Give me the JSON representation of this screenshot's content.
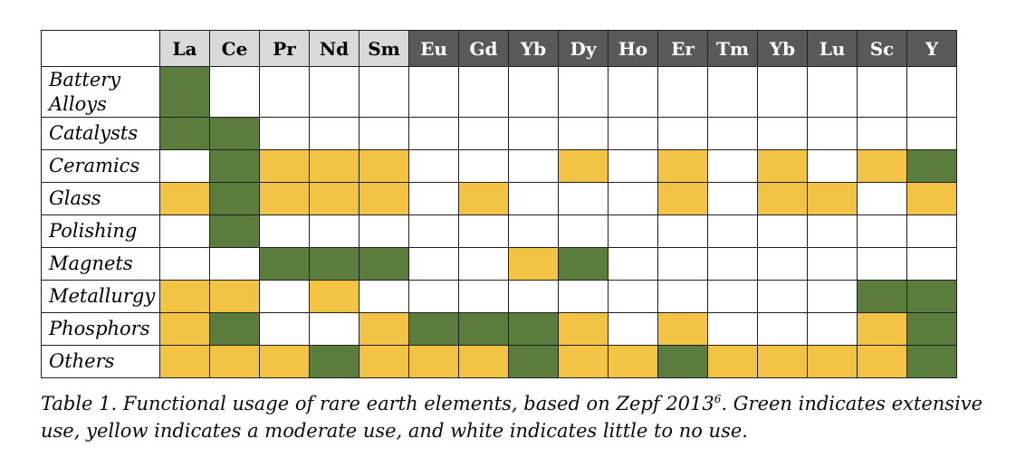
{
  "colors": {
    "green": "#5a7d3e",
    "yellow": "#f2c344",
    "white": "#ffffff",
    "header_light_bg": "#d9d9d9",
    "header_dark_bg": "#595959",
    "border": "#1f1f1f"
  },
  "table": {
    "corner_label": "",
    "columns": [
      {
        "label": "La",
        "style": "light"
      },
      {
        "label": "Ce",
        "style": "light"
      },
      {
        "label": "Pr",
        "style": "light"
      },
      {
        "label": "Nd",
        "style": "light"
      },
      {
        "label": "Sm",
        "style": "light"
      },
      {
        "label": "Eu",
        "style": "dark"
      },
      {
        "label": "Gd",
        "style": "dark"
      },
      {
        "label": "Yb",
        "style": "dark"
      },
      {
        "label": "Dy",
        "style": "dark"
      },
      {
        "label": "Ho",
        "style": "dark"
      },
      {
        "label": "Er",
        "style": "dark"
      },
      {
        "label": "Tm",
        "style": "dark"
      },
      {
        "label": "Yb",
        "style": "dark"
      },
      {
        "label": "Lu",
        "style": "dark"
      },
      {
        "label": "Sc",
        "style": "dark"
      },
      {
        "label": "Y",
        "style": "dark"
      }
    ],
    "rows": [
      {
        "label": "Battery Alloys",
        "tall": true,
        "cells": [
          "green",
          "white",
          "white",
          "white",
          "white",
          "white",
          "white",
          "white",
          "white",
          "white",
          "white",
          "white",
          "white",
          "white",
          "white",
          "white"
        ]
      },
      {
        "label": "Catalysts",
        "tall": false,
        "cells": [
          "green",
          "green",
          "white",
          "white",
          "white",
          "white",
          "white",
          "white",
          "white",
          "white",
          "white",
          "white",
          "white",
          "white",
          "white",
          "white"
        ]
      },
      {
        "label": "Ceramics",
        "tall": false,
        "cells": [
          "white",
          "green",
          "yellow",
          "yellow",
          "yellow",
          "white",
          "white",
          "white",
          "yellow",
          "white",
          "yellow",
          "white",
          "yellow",
          "white",
          "yellow",
          "green"
        ]
      },
      {
        "label": "Glass",
        "tall": false,
        "cells": [
          "yellow",
          "green",
          "yellow",
          "yellow",
          "yellow",
          "white",
          "yellow",
          "white",
          "white",
          "white",
          "yellow",
          "white",
          "yellow",
          "yellow",
          "white",
          "yellow"
        ]
      },
      {
        "label": "Polishing",
        "tall": false,
        "cells": [
          "white",
          "green",
          "white",
          "white",
          "white",
          "white",
          "white",
          "white",
          "white",
          "white",
          "white",
          "white",
          "white",
          "white",
          "white",
          "white"
        ]
      },
      {
        "label": "Magnets",
        "tall": false,
        "cells": [
          "white",
          "white",
          "green",
          "green",
          "green",
          "white",
          "white",
          "yellow",
          "green",
          "white",
          "white",
          "white",
          "white",
          "white",
          "white",
          "white"
        ]
      },
      {
        "label": "Metallurgy",
        "tall": false,
        "cells": [
          "yellow",
          "yellow",
          "white",
          "yellow",
          "white",
          "white",
          "white",
          "white",
          "white",
          "white",
          "white",
          "white",
          "white",
          "white",
          "green",
          "green"
        ]
      },
      {
        "label": "Phosphors",
        "tall": false,
        "cells": [
          "yellow",
          "green",
          "white",
          "white",
          "yellow",
          "green",
          "green",
          "green",
          "yellow",
          "white",
          "yellow",
          "white",
          "white",
          "white",
          "yellow",
          "green"
        ]
      },
      {
        "label": "Others",
        "tall": false,
        "cells": [
          "yellow",
          "yellow",
          "yellow",
          "green",
          "yellow",
          "yellow",
          "yellow",
          "green",
          "yellow",
          "yellow",
          "green",
          "yellow",
          "yellow",
          "yellow",
          "yellow",
          "green"
        ]
      }
    ]
  },
  "legend_meaning": {
    "green": "extensive use",
    "yellow": "moderate use",
    "white": "little to no use"
  },
  "caption": {
    "text_before_sup": "Table 1. Functional usage of rare earth elements, based on Zepf 2013",
    "sup": "6",
    "text_after_sup": ". Green indicates extensive use, yellow indicates a moderate use, and white indicates little to no use."
  }
}
